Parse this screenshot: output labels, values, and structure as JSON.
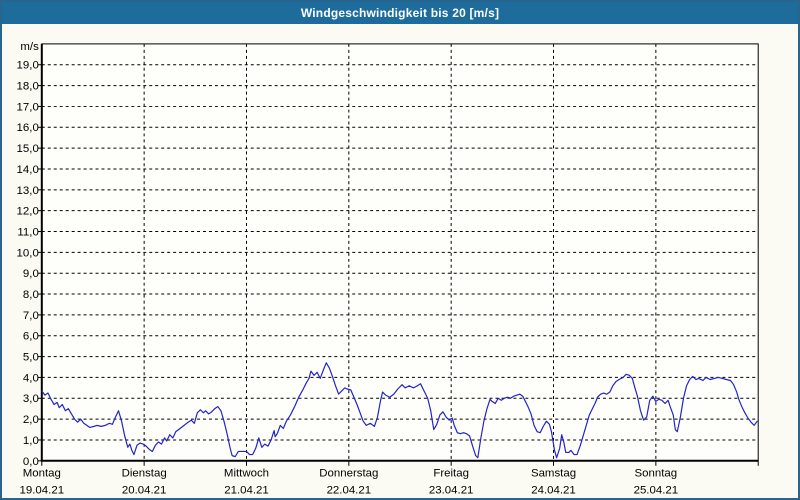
{
  "window": {
    "title": "Windgeschwindigkeit bis 20 [m/s]"
  },
  "colors": {
    "titlebar_bg": "#1d6c9c",
    "titlebar_text": "#ffffff",
    "window_bg": "#fbfbf4",
    "window_border": "#27658e",
    "plot_border": "#000000",
    "grid": "#000000",
    "line": "#2323c8"
  },
  "chart_data": {
    "type": "line",
    "title": "Windgeschwindigkeit bis 20 [m/s]",
    "unit_label": "m/s",
    "ylim": [
      0,
      20
    ],
    "ytick_step": 1,
    "ytick_labels": [
      "0,0",
      "1,0",
      "2,0",
      "3,0",
      "4,0",
      "5,0",
      "6,0",
      "7,0",
      "8,0",
      "9,0",
      "10,0",
      "11,0",
      "12,0",
      "13,0",
      "14,0",
      "15,0",
      "16,0",
      "17,0",
      "18,0",
      "19,0"
    ],
    "grid": "dashed",
    "legend": "none",
    "days": [
      {
        "name": "Montag",
        "date": "19.04.21"
      },
      {
        "name": "Dienstag",
        "date": "20.04.21"
      },
      {
        "name": "Mittwoch",
        "date": "21.04.21"
      },
      {
        "name": "Donnerstag",
        "date": "22.04.21"
      },
      {
        "name": "Freitag",
        "date": "23.04.21"
      },
      {
        "name": "Samstag",
        "date": "24.04.21"
      },
      {
        "name": "Sonntag",
        "date": "25.04.21"
      }
    ],
    "series": [
      {
        "name": "Windgeschwindigkeit",
        "x_unit": "days_from_monday",
        "y_unit": "m/s",
        "points": [
          [
            0.0,
            3.35
          ],
          [
            0.03,
            3.15
          ],
          [
            0.06,
            3.25
          ],
          [
            0.09,
            2.95
          ],
          [
            0.12,
            2.7
          ],
          [
            0.15,
            2.8
          ],
          [
            0.17,
            2.55
          ],
          [
            0.2,
            2.7
          ],
          [
            0.23,
            2.4
          ],
          [
            0.26,
            2.5
          ],
          [
            0.29,
            2.25
          ],
          [
            0.32,
            2.0
          ],
          [
            0.35,
            1.85
          ],
          [
            0.38,
            2.0
          ],
          [
            0.41,
            1.8
          ],
          [
            0.44,
            1.7
          ],
          [
            0.47,
            1.6
          ],
          [
            0.51,
            1.65
          ],
          [
            0.54,
            1.7
          ],
          [
            0.58,
            1.65
          ],
          [
            0.62,
            1.7
          ],
          [
            0.66,
            1.8
          ],
          [
            0.69,
            1.75
          ],
          [
            0.72,
            2.1
          ],
          [
            0.75,
            2.4
          ],
          [
            0.78,
            1.9
          ],
          [
            0.81,
            1.2
          ],
          [
            0.84,
            0.65
          ],
          [
            0.86,
            0.8
          ],
          [
            0.88,
            0.5
          ],
          [
            0.9,
            0.3
          ],
          [
            0.93,
            0.75
          ],
          [
            0.96,
            0.85
          ],
          [
            0.99,
            0.8
          ],
          [
            1.02,
            0.7
          ],
          [
            1.05,
            0.55
          ],
          [
            1.08,
            0.45
          ],
          [
            1.11,
            0.75
          ],
          [
            1.14,
            0.9
          ],
          [
            1.17,
            0.8
          ],
          [
            1.2,
            1.1
          ],
          [
            1.22,
            0.95
          ],
          [
            1.25,
            1.25
          ],
          [
            1.28,
            1.1
          ],
          [
            1.31,
            1.4
          ],
          [
            1.35,
            1.55
          ],
          [
            1.39,
            1.7
          ],
          [
            1.43,
            1.85
          ],
          [
            1.46,
            1.95
          ],
          [
            1.49,
            1.8
          ],
          [
            1.52,
            2.3
          ],
          [
            1.55,
            2.45
          ],
          [
            1.58,
            2.3
          ],
          [
            1.6,
            2.4
          ],
          [
            1.63,
            2.25
          ],
          [
            1.66,
            2.35
          ],
          [
            1.69,
            2.5
          ],
          [
            1.72,
            2.6
          ],
          [
            1.75,
            2.4
          ],
          [
            1.78,
            1.9
          ],
          [
            1.81,
            1.3
          ],
          [
            1.84,
            0.6
          ],
          [
            1.86,
            0.25
          ],
          [
            1.89,
            0.2
          ],
          [
            1.92,
            0.45
          ],
          [
            1.94,
            0.45
          ],
          [
            1.97,
            0.45
          ],
          [
            2.0,
            0.45
          ],
          [
            2.03,
            0.3
          ],
          [
            2.06,
            0.3
          ],
          [
            2.09,
            0.6
          ],
          [
            2.12,
            1.1
          ],
          [
            2.15,
            0.65
          ],
          [
            2.18,
            0.8
          ],
          [
            2.21,
            0.7
          ],
          [
            2.24,
            1.0
          ],
          [
            2.27,
            1.45
          ],
          [
            2.28,
            1.15
          ],
          [
            2.3,
            1.3
          ],
          [
            2.33,
            1.7
          ],
          [
            2.36,
            1.55
          ],
          [
            2.39,
            1.9
          ],
          [
            2.43,
            2.2
          ],
          [
            2.47,
            2.6
          ],
          [
            2.51,
            3.05
          ],
          [
            2.55,
            3.4
          ],
          [
            2.58,
            3.7
          ],
          [
            2.61,
            3.95
          ],
          [
            2.63,
            4.3
          ],
          [
            2.66,
            4.1
          ],
          [
            2.69,
            4.25
          ],
          [
            2.72,
            3.95
          ],
          [
            2.75,
            4.35
          ],
          [
            2.78,
            4.7
          ],
          [
            2.81,
            4.45
          ],
          [
            2.84,
            4.05
          ],
          [
            2.87,
            3.6
          ],
          [
            2.9,
            3.2
          ],
          [
            2.93,
            3.35
          ],
          [
            2.96,
            3.5
          ],
          [
            2.98,
            3.45
          ],
          [
            3.02,
            3.4
          ],
          [
            3.05,
            3.05
          ],
          [
            3.08,
            2.7
          ],
          [
            3.11,
            2.3
          ],
          [
            3.14,
            1.9
          ],
          [
            3.17,
            1.7
          ],
          [
            3.21,
            1.8
          ],
          [
            3.25,
            1.65
          ],
          [
            3.28,
            2.1
          ],
          [
            3.31,
            2.9
          ],
          [
            3.33,
            3.3
          ],
          [
            3.36,
            3.15
          ],
          [
            3.4,
            3.05
          ],
          [
            3.44,
            3.2
          ],
          [
            3.48,
            3.45
          ],
          [
            3.52,
            3.65
          ],
          [
            3.55,
            3.5
          ],
          [
            3.59,
            3.6
          ],
          [
            3.63,
            3.5
          ],
          [
            3.67,
            3.6
          ],
          [
            3.7,
            3.7
          ],
          [
            3.73,
            3.4
          ],
          [
            3.77,
            3.0
          ],
          [
            3.8,
            2.4
          ],
          [
            3.83,
            1.5
          ],
          [
            3.86,
            1.75
          ],
          [
            3.89,
            2.2
          ],
          [
            3.92,
            2.35
          ],
          [
            3.95,
            2.1
          ],
          [
            3.98,
            1.95
          ],
          [
            4.01,
            2.05
          ],
          [
            4.03,
            1.7
          ],
          [
            4.06,
            1.35
          ],
          [
            4.09,
            1.3
          ],
          [
            4.12,
            1.35
          ],
          [
            4.15,
            1.3
          ],
          [
            4.18,
            1.2
          ],
          [
            4.21,
            0.7
          ],
          [
            4.24,
            0.25
          ],
          [
            4.26,
            0.15
          ],
          [
            4.29,
            1.1
          ],
          [
            4.32,
            1.9
          ],
          [
            4.35,
            2.5
          ],
          [
            4.38,
            2.95
          ],
          [
            4.4,
            2.85
          ],
          [
            4.43,
            2.75
          ],
          [
            4.46,
            3.0
          ],
          [
            4.49,
            2.9
          ],
          [
            4.52,
            3.0
          ],
          [
            4.55,
            3.05
          ],
          [
            4.58,
            3.0
          ],
          [
            4.61,
            3.1
          ],
          [
            4.64,
            3.15
          ],
          [
            4.67,
            3.2
          ],
          [
            4.7,
            3.1
          ],
          [
            4.72,
            2.9
          ],
          [
            4.75,
            2.6
          ],
          [
            4.78,
            2.25
          ],
          [
            4.81,
            1.7
          ],
          [
            4.84,
            1.4
          ],
          [
            4.87,
            1.35
          ],
          [
            4.9,
            1.65
          ],
          [
            4.93,
            1.9
          ],
          [
            4.96,
            1.75
          ],
          [
            4.98,
            1.4
          ],
          [
            5.01,
            0.5
          ],
          [
            5.03,
            0.15
          ],
          [
            5.06,
            0.6
          ],
          [
            5.08,
            1.25
          ],
          [
            5.1,
            0.9
          ],
          [
            5.12,
            0.4
          ],
          [
            5.15,
            0.4
          ],
          [
            5.17,
            0.5
          ],
          [
            5.2,
            0.3
          ],
          [
            5.23,
            0.3
          ],
          [
            5.26,
            0.7
          ],
          [
            5.29,
            1.2
          ],
          [
            5.32,
            1.7
          ],
          [
            5.35,
            2.2
          ],
          [
            5.38,
            2.5
          ],
          [
            5.41,
            2.8
          ],
          [
            5.43,
            3.05
          ],
          [
            5.46,
            3.2
          ],
          [
            5.49,
            3.25
          ],
          [
            5.52,
            3.2
          ],
          [
            5.55,
            3.3
          ],
          [
            5.58,
            3.6
          ],
          [
            5.61,
            3.8
          ],
          [
            5.64,
            3.9
          ],
          [
            5.68,
            4.0
          ],
          [
            5.71,
            4.15
          ],
          [
            5.74,
            4.1
          ],
          [
            5.77,
            3.95
          ],
          [
            5.79,
            3.6
          ],
          [
            5.82,
            3.1
          ],
          [
            5.85,
            2.4
          ],
          [
            5.88,
            1.95
          ],
          [
            5.91,
            2.1
          ],
          [
            5.94,
            2.9
          ],
          [
            5.97,
            3.1
          ],
          [
            6.0,
            2.85
          ],
          [
            6.03,
            2.95
          ],
          [
            6.06,
            2.9
          ],
          [
            6.09,
            2.75
          ],
          [
            6.12,
            2.9
          ],
          [
            6.14,
            2.6
          ],
          [
            6.17,
            2.2
          ],
          [
            6.19,
            1.5
          ],
          [
            6.21,
            1.4
          ],
          [
            6.24,
            2.1
          ],
          [
            6.27,
            3.0
          ],
          [
            6.3,
            3.6
          ],
          [
            6.33,
            3.9
          ],
          [
            6.36,
            4.05
          ],
          [
            6.39,
            3.9
          ],
          [
            6.42,
            3.95
          ],
          [
            6.46,
            3.85
          ],
          [
            6.49,
            4.0
          ],
          [
            6.53,
            3.9
          ],
          [
            6.57,
            3.95
          ],
          [
            6.61,
            4.0
          ],
          [
            6.65,
            3.95
          ],
          [
            6.69,
            3.9
          ],
          [
            6.73,
            3.85
          ],
          [
            6.76,
            3.65
          ],
          [
            6.79,
            3.3
          ],
          [
            6.81,
            2.95
          ],
          [
            6.84,
            2.6
          ],
          [
            6.87,
            2.3
          ],
          [
            6.9,
            2.05
          ],
          [
            6.93,
            1.85
          ],
          [
            6.96,
            1.7
          ],
          [
            6.99,
            1.9
          ]
        ]
      }
    ]
  }
}
